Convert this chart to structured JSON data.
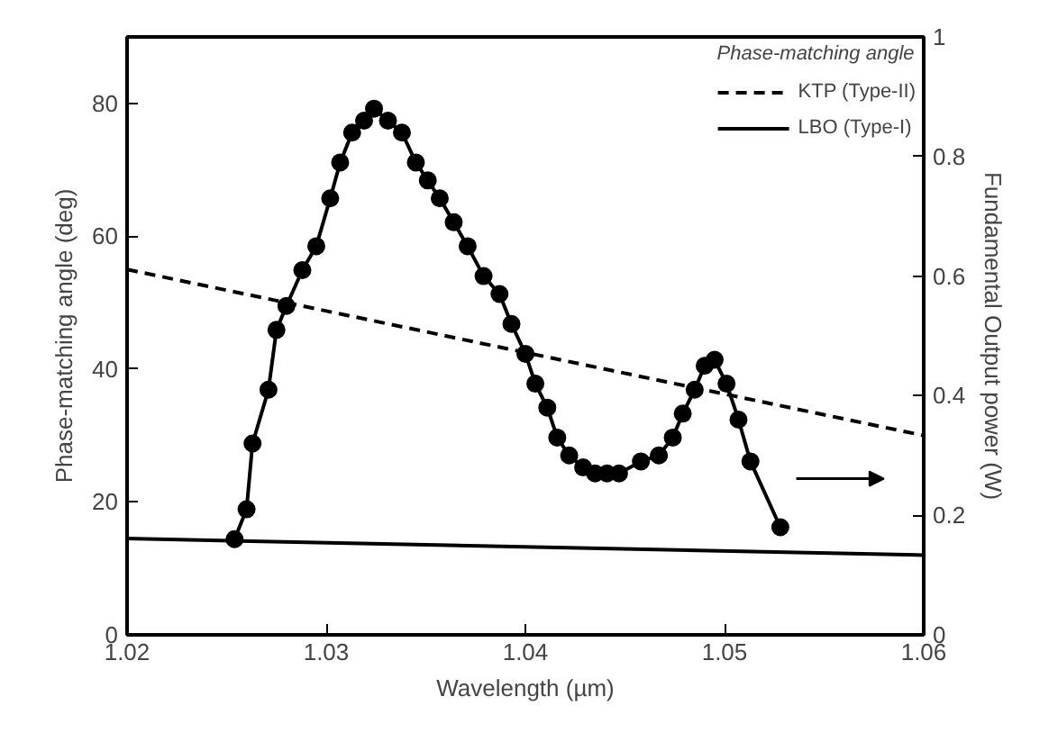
{
  "chart_data": {
    "type": "line",
    "xlabel": "Wavelength (µm)",
    "ylabel": "Phase-matching angle (deg)",
    "y2label": "Fundamental Output power (W)",
    "legend_title": "Phase-matching angle",
    "legend": "top right",
    "xlim": [
      1.02,
      1.06
    ],
    "xticks": [
      1.02,
      1.03,
      1.04,
      1.05,
      1.06
    ],
    "ylim": [
      0,
      90
    ],
    "yticks": [
      0,
      20,
      40,
      60,
      80
    ],
    "y2lim": [
      0,
      1
    ],
    "y2ticks": [
      0,
      0.2,
      0.4,
      0.6,
      0.8,
      1
    ],
    "series": [
      {
        "name": "KTP (Type-II)",
        "color": "#000000",
        "line_style": "dashed",
        "marker": "none",
        "x": [
          1.02,
          1.06
        ],
        "values": [
          55,
          30
        ]
      },
      {
        "name": "LBO (Type-I)",
        "color": "#000000",
        "line_style": "solid",
        "marker": "none",
        "x": [
          1.02,
          1.06
        ],
        "values": [
          14.5,
          12
        ]
      },
      {
        "color": "#000000",
        "axis": "y2",
        "line_style": "solid",
        "marker": "circle",
        "x": [
          1.0254,
          1.026,
          1.0263,
          1.0271,
          1.0275,
          1.028,
          1.0288,
          1.0295,
          1.0302,
          1.0307,
          1.0313,
          1.0319,
          1.0324,
          1.0331,
          1.0338,
          1.0345,
          1.0351,
          1.0357,
          1.0364,
          1.0371,
          1.0379,
          1.0387,
          1.0393,
          1.04,
          1.0405,
          1.0411,
          1.0416,
          1.0422,
          1.0429,
          1.0435,
          1.0441,
          1.0447,
          1.0458,
          1.0467,
          1.0474,
          1.0479,
          1.0485,
          1.049,
          1.0495,
          1.0501,
          1.0507,
          1.0513,
          1.0528
        ],
        "values": [
          0.16,
          0.21,
          0.32,
          0.41,
          0.51,
          0.55,
          0.61,
          0.65,
          0.73,
          0.79,
          0.84,
          0.86,
          0.88,
          0.86,
          0.84,
          0.79,
          0.76,
          0.73,
          0.69,
          0.65,
          0.6,
          0.57,
          0.52,
          0.47,
          0.42,
          0.38,
          0.33,
          0.3,
          0.28,
          0.27,
          0.27,
          0.27,
          0.29,
          0.3,
          0.33,
          0.37,
          0.41,
          0.45,
          0.46,
          0.42,
          0.36,
          0.29,
          0.18
        ]
      }
    ]
  }
}
